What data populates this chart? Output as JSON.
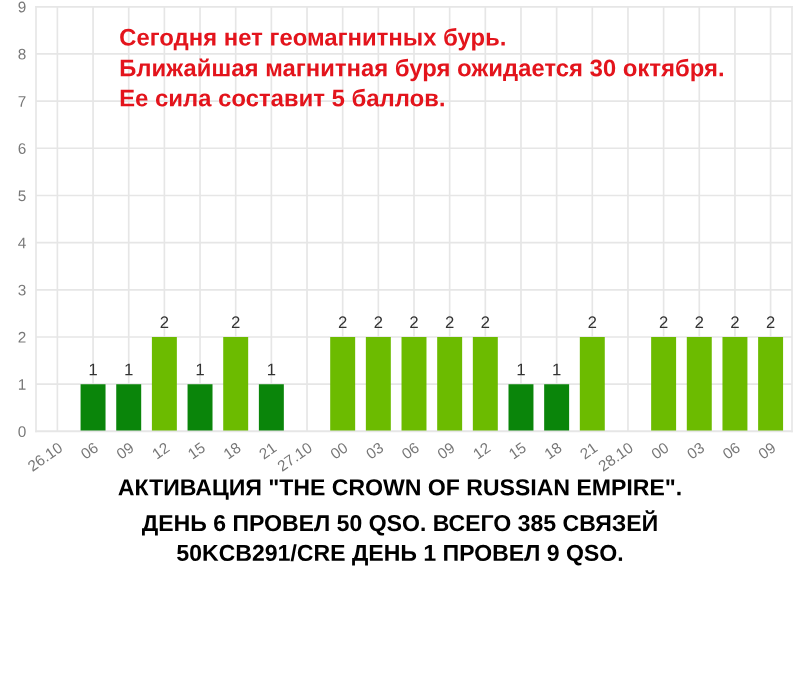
{
  "chart_data": {
    "type": "bar",
    "title": "Сегодня нет геомагнитных бурь.\nБлижайшая магнитная буря ожидается 30 октября.\nЕе сила составит 5 баллов.",
    "categories": [
      "26.10",
      "06",
      "09",
      "12",
      "15",
      "18",
      "21",
      "27.10",
      "00",
      "03",
      "06",
      "09",
      "12",
      "15",
      "18",
      "21",
      "28.10",
      "00",
      "03",
      "06",
      "09"
    ],
    "values": [
      0,
      1,
      1,
      2,
      1,
      2,
      1,
      0,
      2,
      2,
      2,
      2,
      2,
      1,
      1,
      2,
      0,
      2,
      2,
      2,
      2
    ],
    "value_labels": [
      null,
      "1",
      "1",
      "2",
      "1",
      "2",
      "1",
      null,
      "2",
      "2",
      "2",
      "2",
      "2",
      "1",
      "1",
      "2",
      null,
      "2",
      "2",
      "2",
      "2"
    ],
    "colors": [
      "#008000",
      "#0a850a",
      "#0a850a",
      "#6cbb00",
      "#0a850a",
      "#6cbb00",
      "#0a850a",
      "#008000",
      "#6cbb00",
      "#6cbb00",
      "#6cbb00",
      "#6cbb00",
      "#6cbb00",
      "#0a850a",
      "#0a850a",
      "#6cbb00",
      "#008000",
      "#6cbb00",
      "#6cbb00",
      "#6cbb00",
      "#6cbb00"
    ],
    "ylim": [
      0,
      9
    ],
    "yticks": [
      0,
      1,
      2,
      3,
      4,
      5,
      6,
      7,
      8,
      9
    ],
    "grid": true,
    "annotations": [
      "АКТИВАЦИЯ \"THE CROWN OF RUSSIAN EMPIRE\".\nДЕНЬ 6 ПРОВЕЛ 50 QSO. ВСЕГО 385 СВЯЗЕЙ\n50KCB291/CRE ДЕНЬ 1 ПРОВЕЛ 9 QSO."
    ]
  }
}
